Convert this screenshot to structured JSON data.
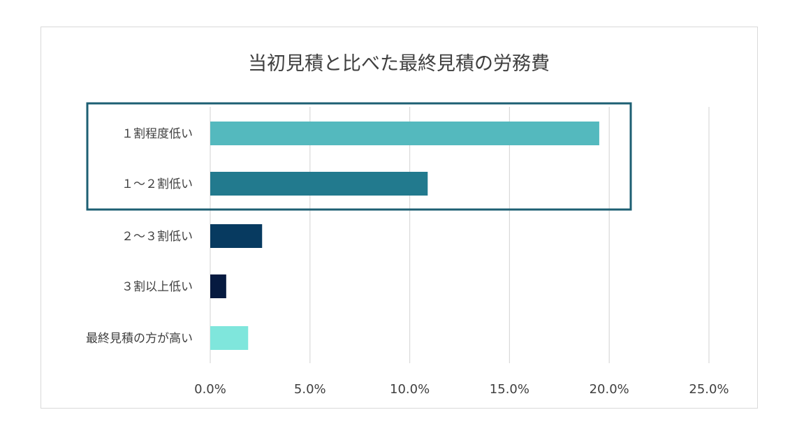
{
  "chart_data": {
    "type": "bar",
    "orientation": "horizontal",
    "title": "当初見積と比べた最終見積の労務費",
    "xlabel": "",
    "ylabel": "",
    "categories": [
      "１割程度低い",
      "１～２割低い",
      "２～３割低い",
      "３割以上低い",
      "最終見積の方が高い"
    ],
    "values": [
      19.5,
      10.9,
      2.6,
      0.8,
      1.9
    ],
    "unit": "%",
    "xlim": [
      0,
      25
    ],
    "ticks": [
      "0.0%",
      "5.0%",
      "10.0%",
      "15.0%",
      "20.0%",
      "25.0%"
    ],
    "tick_values": [
      0,
      5,
      10,
      15,
      20,
      25
    ],
    "grid": "vertical",
    "legend": "none",
    "bar_colors": [
      "#54b9be",
      "#227a8e",
      "#073a60",
      "#061a40",
      "#7fe6dc"
    ],
    "highlight": {
      "categories": [
        "１割程度低い",
        "１～２割低い"
      ],
      "color": "#1d5f73"
    },
    "gridline_color": "#d9d9d9"
  }
}
